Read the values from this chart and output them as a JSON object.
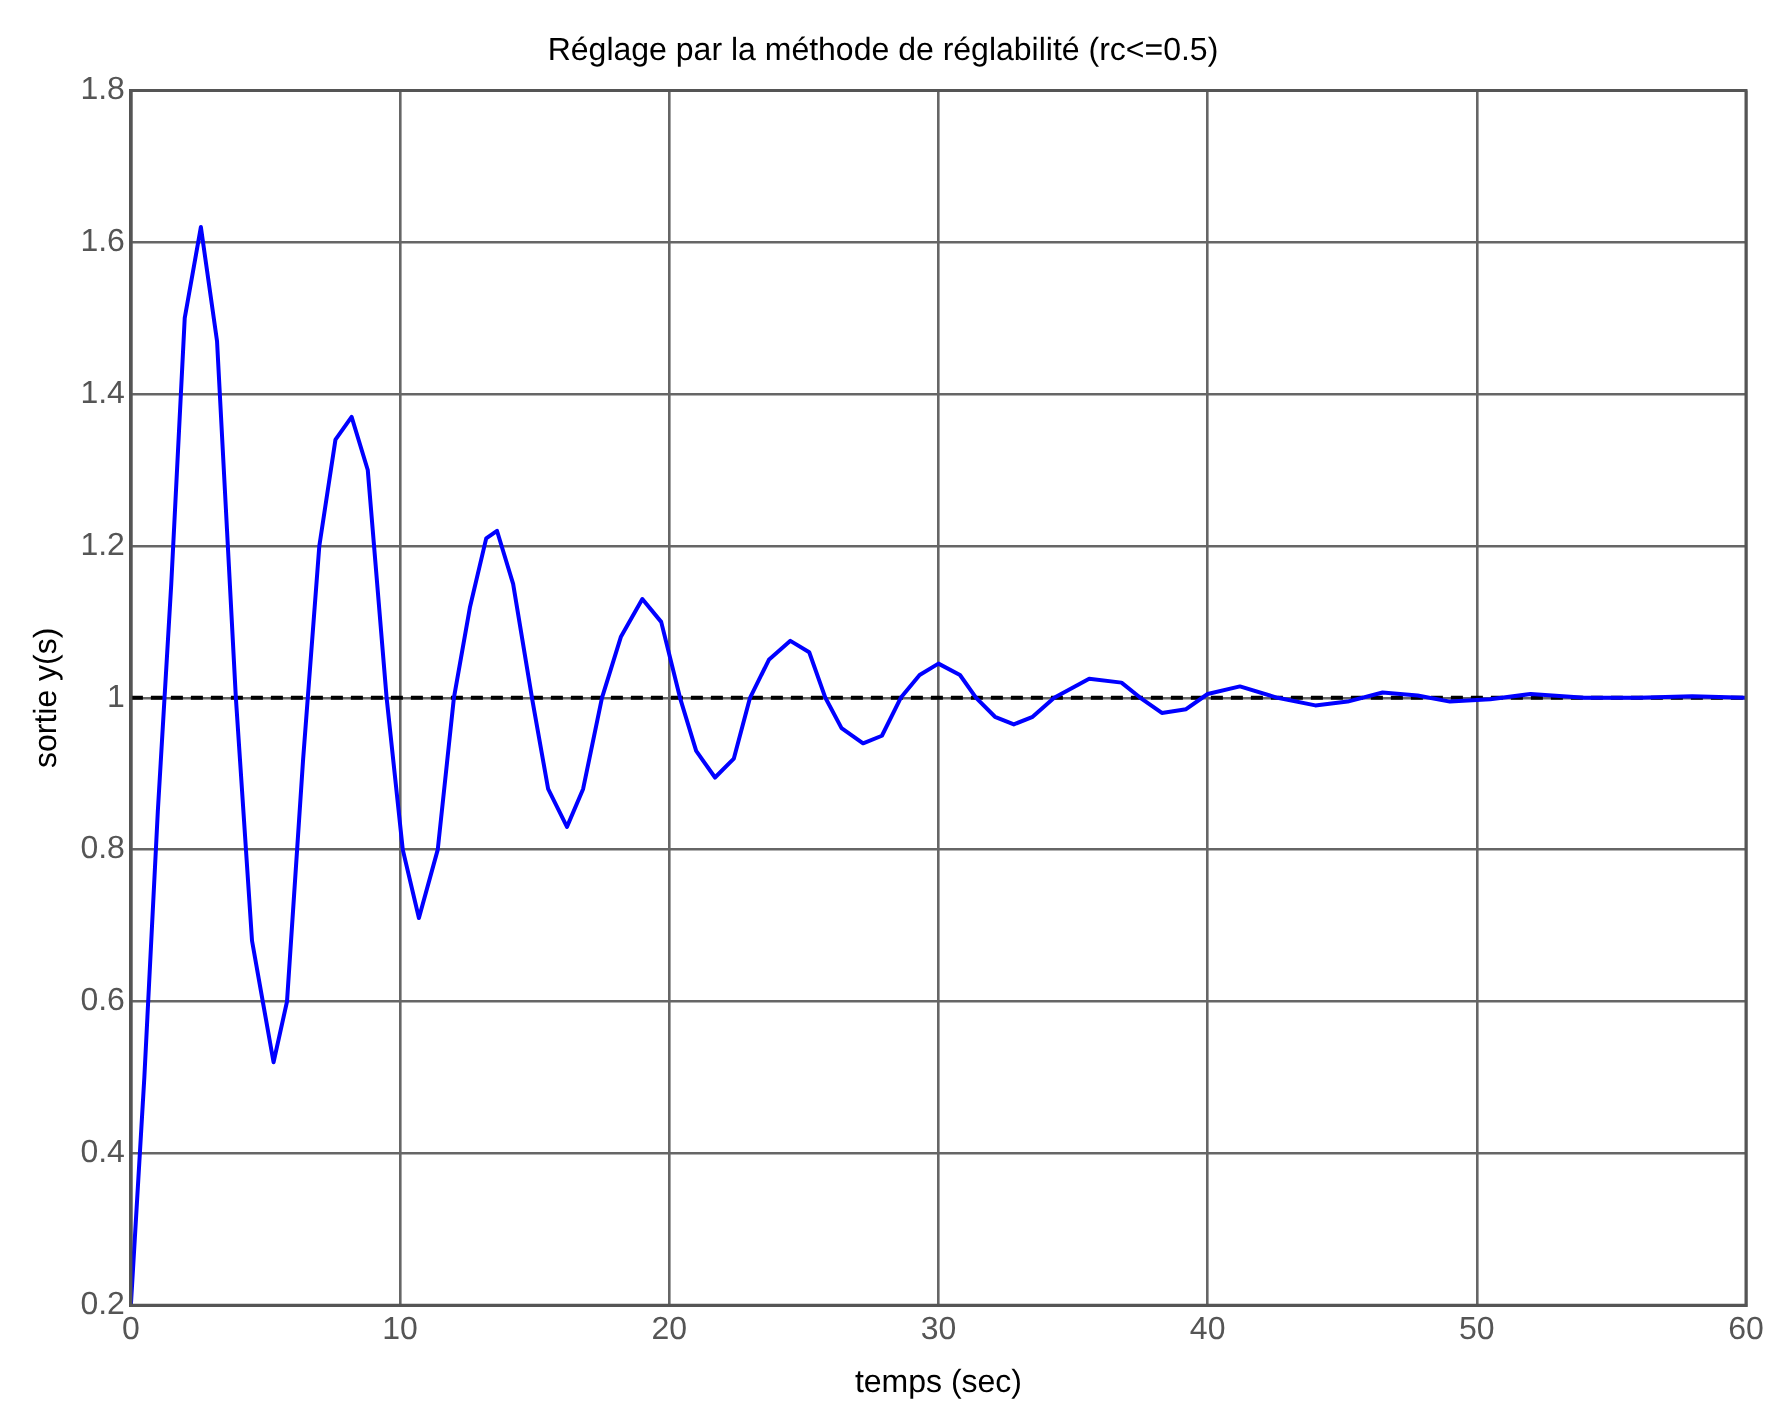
{
  "chart_data": {
    "type": "line",
    "title": "Réglage par la méthode de réglabilité (rc<=0.5)",
    "xlabel": "temps (sec)",
    "ylabel": "sortie y(s)",
    "series": [
      {
        "color": "#0000ff",
        "x": [
          0,
          0.5,
          1,
          1.5,
          2,
          2.6,
          3.2,
          3.9,
          4.5,
          5.3,
          5.8,
          6.4,
          7,
          7.6,
          8.2,
          8.8,
          9.5,
          10.1,
          10.7,
          11.4,
          12,
          12.6,
          13.2,
          13.6,
          14.2,
          14.9,
          15.5,
          16.2,
          16.8,
          17.5,
          18.2,
          19,
          19.7,
          20.4,
          21,
          21.7,
          22.4,
          23,
          23.7,
          24.5,
          25.2,
          25.8,
          26.4,
          27.2,
          27.9,
          28.6,
          29.3,
          30,
          30.8,
          31.4,
          32.1,
          32.8,
          33.5,
          34.3,
          35.6,
          36.8,
          37.5,
          38.3,
          39.2,
          40,
          41.2,
          42.6,
          44,
          45.2,
          46.5,
          47.8,
          49,
          50.5,
          52,
          54,
          56,
          58,
          60
        ],
        "values": [
          0.2,
          0.5,
          0.85,
          1.15,
          1.5,
          1.62,
          1.47,
          1.0,
          0.68,
          0.52,
          0.6,
          0.92,
          1.2,
          1.34,
          1.37,
          1.3,
          1.0,
          0.8,
          0.71,
          0.8,
          1.0,
          1.12,
          1.21,
          1.22,
          1.15,
          1.0,
          0.88,
          0.83,
          0.88,
          1.0,
          1.08,
          1.13,
          1.1,
          1.0,
          0.93,
          0.895,
          0.92,
          1.0,
          1.05,
          1.075,
          1.06,
          1.0,
          0.96,
          0.94,
          0.95,
          1.0,
          1.03,
          1.045,
          1.03,
          1.0,
          0.975,
          0.965,
          0.975,
          1.0,
          1.025,
          1.02,
          1.0,
          0.98,
          0.985,
          1.005,
          1.015,
          1.0,
          0.99,
          0.995,
          1.007,
          1.003,
          0.995,
          0.998,
          1.005,
          1.0,
          1.0,
          1.002,
          1.0
        ]
      }
    ],
    "xlim": [
      0,
      60
    ],
    "ylim": [
      0.2,
      1.8
    ],
    "xticks": [
      0,
      10,
      20,
      30,
      40,
      50,
      60
    ],
    "yticks": [
      0.2,
      0.4,
      0.6,
      0.8,
      1,
      1.2,
      1.4,
      1.6,
      1.8
    ],
    "grid": true,
    "line_style": "solid",
    "marker": "none",
    "ref_lines": [
      {
        "axis": "y",
        "value": 1,
        "color": "#000000",
        "line_style": "dashed"
      }
    ]
  }
}
